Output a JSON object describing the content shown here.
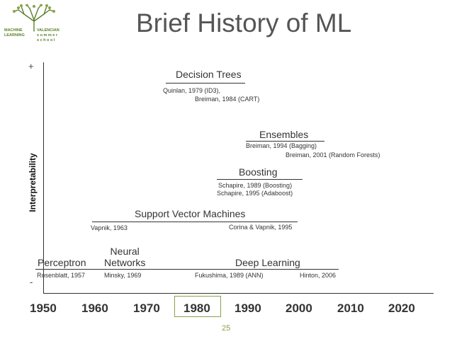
{
  "title": "Brief History of ML",
  "logo": {
    "left_text": [
      "MACHINE",
      "LEARNING"
    ],
    "right_text": [
      "VALENCIAN",
      "s u m m e r",
      "s c h o o l"
    ]
  },
  "axis": {
    "ylabel": "Interpretability",
    "y_top": "+",
    "y_bottom": "-",
    "years": [
      "1950",
      "1960",
      "1970",
      "1980",
      "1990",
      "2000",
      "2010",
      "2020"
    ],
    "highlighted_year": "1980"
  },
  "methods": {
    "decision_trees": {
      "label": "Decision Trees",
      "refs": [
        "Quinlan, 1979 (ID3),",
        "Breiman, 1984 (CART)"
      ]
    },
    "ensembles": {
      "label": "Ensembles",
      "refs": [
        "Breiman, 1994 (Bagging)",
        "Breiman, 2001 (Random Forests)"
      ]
    },
    "boosting": {
      "label": "Boosting",
      "refs": [
        "Schapire, 1989 (Boosting)",
        "Schapire, 1995 (Adaboost)"
      ]
    },
    "svm": {
      "label": "Support Vector Machines",
      "refs": [
        "Vapnik, 1963",
        "Corina & Vapnik, 1995"
      ]
    },
    "perceptron": {
      "label": "Perceptron",
      "refs": [
        "Rosenblatt, 1957"
      ]
    },
    "neural_networks": {
      "label_lines": [
        "Neural",
        "Networks"
      ],
      "refs": [
        "Minsky, 1969"
      ]
    },
    "deep_learning": {
      "label": "Deep Learning",
      "refs": [
        "Fukushima, 1989 (ANN)",
        "Hinton, 2006"
      ]
    }
  },
  "page_number": "25",
  "colors": {
    "accent": "#8aa24a",
    "logo_green": "#5a7f2a",
    "title": "#555555"
  }
}
